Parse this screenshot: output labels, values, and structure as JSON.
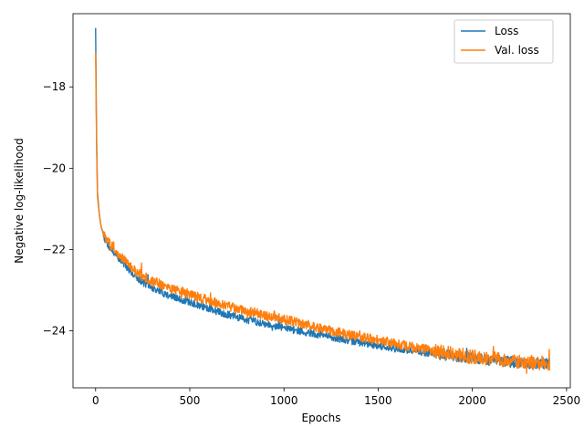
{
  "chart_data": {
    "type": "line",
    "title": "",
    "xlabel": "Epochs",
    "ylabel": "Negative log-likelihood",
    "xlim": [
      -120,
      2520
    ],
    "ylim": [
      -25.4,
      -16.2
    ],
    "xticks": [
      0,
      500,
      1000,
      1500,
      2000,
      2500
    ],
    "yticks": [
      -24,
      -22,
      -20,
      -18
    ],
    "xtick_labels": [
      "0",
      "500",
      "1000",
      "1500",
      "2000",
      "2500"
    ],
    "ytick_labels": [
      "−24",
      "−22",
      "−20",
      "−18"
    ],
    "grid": false,
    "legend_position": "top-right",
    "series": [
      {
        "name": "Loss",
        "color": "#1f77b4",
        "x": [
          0,
          5,
          10,
          20,
          30,
          50,
          75,
          100,
          150,
          200,
          250,
          300,
          400,
          500,
          600,
          700,
          800,
          900,
          1000,
          1100,
          1200,
          1300,
          1400,
          1500,
          1600,
          1700,
          1800,
          1900,
          2000,
          2100,
          2200,
          2300,
          2410
        ],
        "y": [
          -16.55,
          -19.2,
          -20.6,
          -21.15,
          -21.45,
          -21.75,
          -21.95,
          -22.1,
          -22.35,
          -22.6,
          -22.8,
          -22.95,
          -23.15,
          -23.3,
          -23.45,
          -23.6,
          -23.72,
          -23.82,
          -23.92,
          -24.02,
          -24.1,
          -24.2,
          -24.28,
          -24.36,
          -24.44,
          -24.5,
          -24.56,
          -24.62,
          -24.67,
          -24.72,
          -24.76,
          -24.8,
          -24.8
        ],
        "noise": 0.09
      },
      {
        "name": "Val. loss",
        "color": "#ff7f0e",
        "x": [
          0,
          5,
          10,
          20,
          30,
          50,
          75,
          100,
          150,
          200,
          250,
          300,
          400,
          500,
          600,
          700,
          800,
          900,
          1000,
          1100,
          1200,
          1300,
          1400,
          1500,
          1600,
          1700,
          1800,
          1900,
          2000,
          2100,
          2200,
          2300,
          2410
        ],
        "y": [
          -17.15,
          -19.4,
          -20.7,
          -21.15,
          -21.45,
          -21.7,
          -21.85,
          -22.0,
          -22.25,
          -22.5,
          -22.65,
          -22.78,
          -22.95,
          -23.1,
          -23.25,
          -23.4,
          -23.5,
          -23.62,
          -23.72,
          -23.82,
          -23.95,
          -24.05,
          -24.15,
          -24.23,
          -24.32,
          -24.42,
          -24.5,
          -24.57,
          -24.64,
          -24.68,
          -24.74,
          -24.78,
          -24.8
        ],
        "noise": 0.12
      }
    ]
  }
}
